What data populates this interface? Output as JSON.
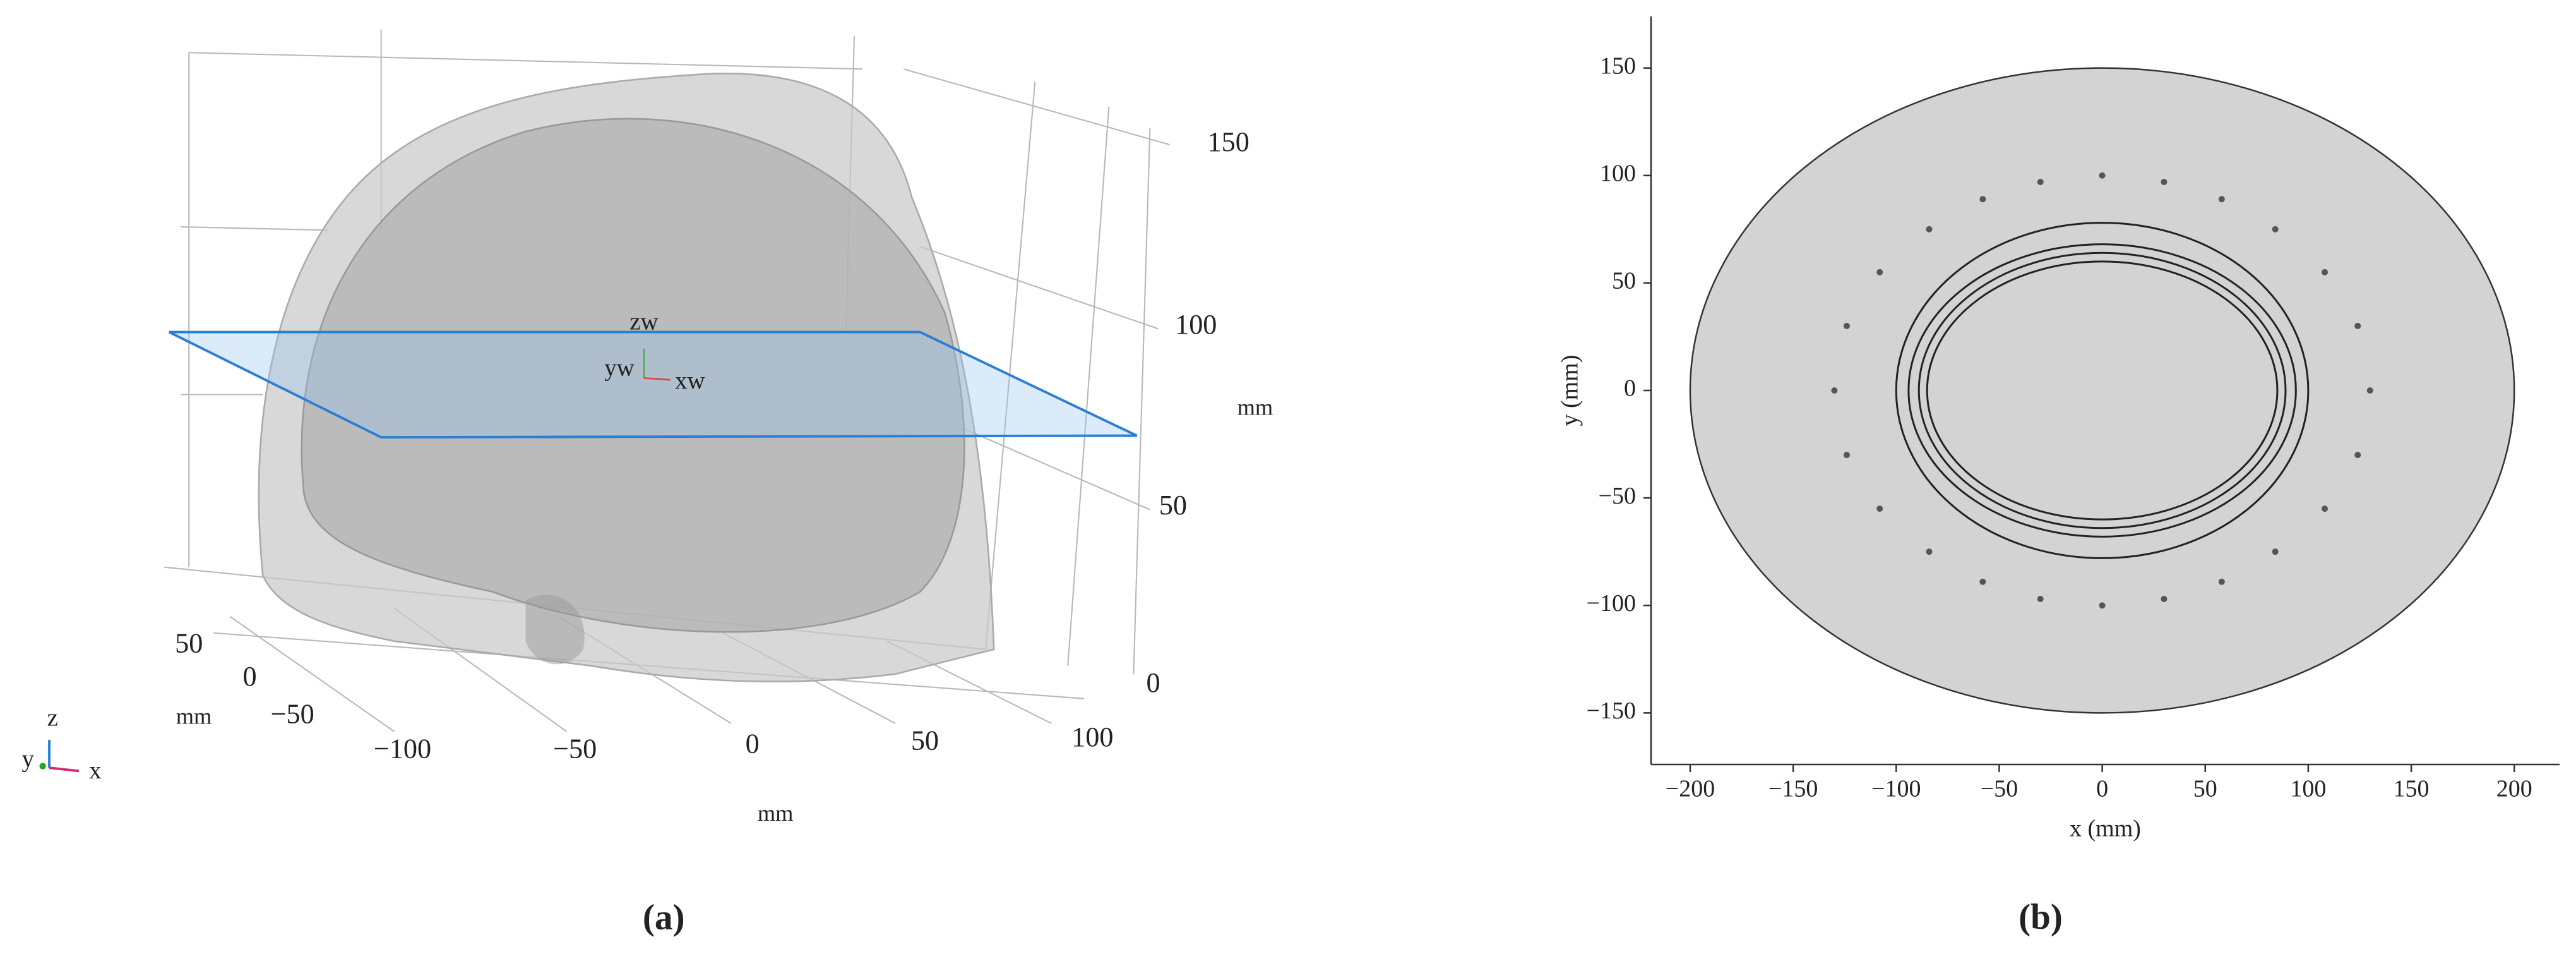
{
  "panel_a": {
    "z_ticks": [
      "150",
      "100",
      "50",
      "0"
    ],
    "z_unit": "mm",
    "x_ticks": [
      "−100",
      "−50",
      "0",
      "50",
      "100"
    ],
    "x_unit": "mm",
    "y_ticks": [
      "50",
      "0",
      "−50"
    ],
    "y_unit": "mm",
    "frame_labels": {
      "z": "zw",
      "y": "yw",
      "x": "xw"
    },
    "triad": {
      "z": "z",
      "y": "y",
      "x": "x"
    },
    "caption": "(a)"
  },
  "chart_data": {
    "type": "scatter",
    "caption": "(b)",
    "xlabel": "x (mm)",
    "ylabel": "y (mm)",
    "xlim": [
      -219,
      222
    ],
    "ylim": [
      -174,
      174
    ],
    "xticks": [
      {
        "value": -200,
        "label": "−200"
      },
      {
        "value": -150,
        "label": "−150"
      },
      {
        "value": -100,
        "label": "−100"
      },
      {
        "value": -50,
        "label": "−50"
      },
      0,
      50,
      100,
      150,
      200
    ],
    "yticks": [
      {
        "value": -150,
        "label": "−150"
      },
      {
        "value": -100,
        "label": "−100"
      },
      {
        "value": -50,
        "label": "−50"
      },
      0,
      50,
      100,
      150
    ],
    "domain": {
      "x_radius": 200,
      "y_radius": 150
    },
    "contours": [
      {
        "x_radius": 100,
        "y_radius": 78
      },
      {
        "x_radius": 94,
        "y_radius": 68
      },
      {
        "x_radius": 89,
        "y_radius": 64
      },
      {
        "x_radius": 85,
        "y_radius": 60
      }
    ],
    "x": [
      0,
      30,
      58,
      84,
      108,
      124,
      130,
      124,
      108,
      84,
      58,
      30,
      0,
      -30,
      -58,
      -84,
      -108,
      -124,
      -130,
      -124,
      -108,
      -84,
      -58,
      -30
    ],
    "y": [
      100,
      97,
      89,
      75,
      55,
      30,
      0,
      -30,
      -55,
      -75,
      -89,
      -97,
      -100,
      -97,
      -89,
      -75,
      -55,
      -30,
      0,
      30,
      55,
      75,
      89,
      97
    ],
    "color": "#555555"
  }
}
